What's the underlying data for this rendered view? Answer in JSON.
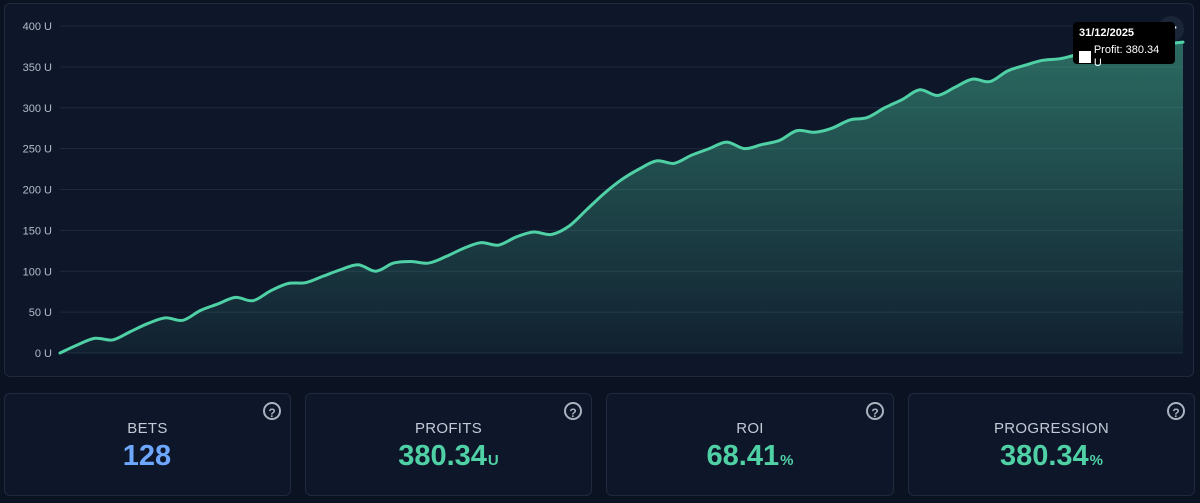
{
  "colors": {
    "line": "#4fd1a5",
    "blue_value": "#6ea8fe",
    "green_value": "#4fd1a5"
  },
  "chart_data": {
    "type": "area",
    "ylim": [
      0,
      400
    ],
    "yticks": [
      "0 U",
      "50 U",
      "100 U",
      "150 U",
      "200 U",
      "250 U",
      "300 U",
      "350 U",
      "400 U"
    ],
    "x": [
      0,
      2,
      4,
      6,
      8,
      10,
      12,
      14,
      16,
      18,
      20,
      22,
      24,
      26,
      28,
      30,
      32,
      34,
      36,
      38,
      40,
      42,
      44,
      46,
      48,
      50,
      52,
      54,
      56,
      58,
      60,
      62,
      64,
      66,
      68,
      70,
      72,
      74,
      76,
      78,
      80,
      82,
      84,
      86,
      88,
      90,
      92,
      94,
      96,
      98,
      100,
      102,
      104,
      106,
      108,
      110,
      112,
      114,
      116,
      118,
      120,
      122,
      124,
      126,
      128
    ],
    "series": [
      {
        "values": [
          0,
          10,
          18,
          16,
          26,
          36,
          43,
          40,
          52,
          60,
          68,
          64,
          76,
          85,
          86,
          94,
          102,
          108,
          100,
          110,
          112,
          110,
          118,
          128,
          135,
          132,
          142,
          148,
          145,
          155,
          175,
          195,
          212,
          225,
          235,
          232,
          242,
          250,
          258,
          250,
          255,
          260,
          272,
          270,
          275,
          285,
          288,
          300,
          310,
          322,
          315,
          325,
          335,
          332,
          345,
          352,
          358,
          360,
          365,
          368,
          372,
          374,
          376,
          378,
          380.34
        ]
      }
    ],
    "tooltip": {
      "date": "31/12/2025",
      "label": "Profit: 380.34 U"
    }
  },
  "tooltip": {
    "date": "31/12/2025",
    "text": "Profit: 380.34 U"
  },
  "menu": {
    "icon": "ellipsis-icon",
    "label": "···"
  },
  "stats": [
    {
      "label": "BETS",
      "value": "128",
      "unit": ""
    },
    {
      "label": "PROFITS",
      "value": "380.34",
      "unit": "U"
    },
    {
      "label": "ROI",
      "value": "68.41",
      "unit": "%"
    },
    {
      "label": "PROGRESSION",
      "value": "380.34",
      "unit": "%"
    }
  ],
  "help_icon": {
    "icon": "question-circle-icon",
    "glyph": "?"
  }
}
